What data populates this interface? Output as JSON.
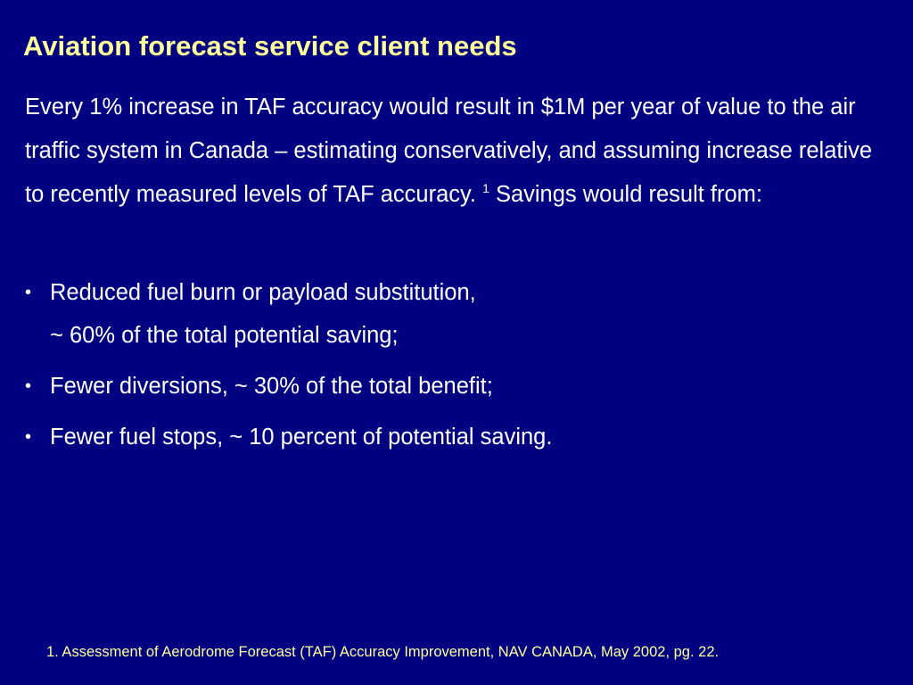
{
  "colors": {
    "background": "#000080",
    "title": "#FFFF99",
    "body_text": "#FFFFFF",
    "footnote": "#FFFF99"
  },
  "slide": {
    "title": "Aviation forecast service client needs",
    "intro": {
      "text_before_ref": "Every 1% increase in TAF accuracy would result in $1M per year of value to the air traffic system in Canada – estimating conservatively, and assuming increase relative to recently measured levels of TAF accuracy.",
      "ref_marker": "1",
      "text_after_ref": "Savings would result from:"
    },
    "bullets": [
      {
        "line1": "Reduced fuel burn or payload substitution,",
        "line2": "~ 60% of the total potential saving;"
      },
      {
        "line1": "Fewer diversions, ~ 30% of the total benefit;"
      },
      {
        "line1": "Fewer fuel stops, ~ 10 percent of potential saving."
      }
    ],
    "bullet_symbol": "•",
    "footnote": "1. Assessment of Aerodrome Forecast (TAF) Accuracy Improvement, NAV CANADA, May 2002, pg. 22."
  }
}
